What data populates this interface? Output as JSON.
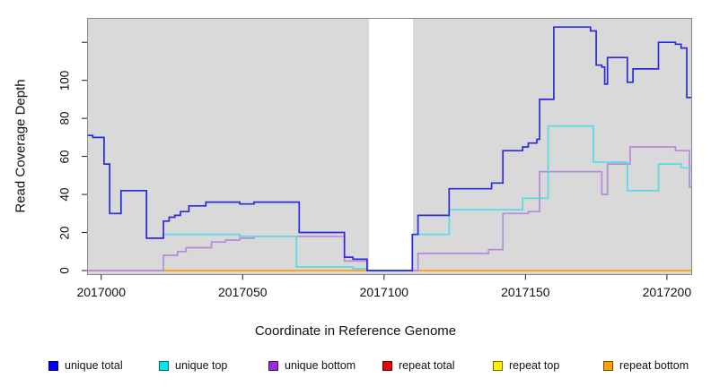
{
  "figure": {
    "background": "#FFFFFF",
    "plot_background": "#D9D9D9",
    "border_color": "#8A8A8A",
    "tick_color": "#1A1A1A"
  },
  "axes": {
    "x": {
      "label": "Coordinate in Reference Genome",
      "ticks": [
        2017000,
        2017050,
        2017100,
        2017150,
        2017200
      ],
      "tick_labels": [
        "2017000",
        "2017050",
        "2017100",
        "2017150",
        "2017200"
      ]
    },
    "y": {
      "label": "Read Coverage Depth",
      "ticks": [
        0,
        20,
        40,
        60,
        80,
        100,
        120
      ],
      "tick_labels": [
        "0",
        "20",
        "40",
        "60",
        "80",
        "100",
        ""
      ]
    }
  },
  "chart_data": {
    "type": "line",
    "step": true,
    "title": "",
    "xlabel": "Coordinate in Reference Genome",
    "ylabel": "Read Coverage Depth",
    "xlim": [
      2016995,
      2017208.6
    ],
    "ylim": [
      0,
      133
    ],
    "grid": false,
    "legend_position": "bottom",
    "masked_region": {
      "x0": 2017094.7,
      "x1": 2017110.2,
      "color": "#FFFFFF"
    },
    "zero_line_overlay": {
      "from": 2016995,
      "to": 2017022,
      "y": 0,
      "color": "#F291B2"
    },
    "series": [
      {
        "name": "unique total",
        "color": "#2B2BDC",
        "points": [
          [
            2016995,
            71
          ],
          [
            2016997,
            70
          ],
          [
            2017001,
            56
          ],
          [
            2017003,
            30
          ],
          [
            2017007,
            42
          ],
          [
            2017016,
            17
          ],
          [
            2017022,
            26
          ],
          [
            2017024,
            28
          ],
          [
            2017026,
            29
          ],
          [
            2017028,
            31
          ],
          [
            2017031,
            34
          ],
          [
            2017037,
            36
          ],
          [
            2017049,
            35
          ],
          [
            2017054,
            36
          ],
          [
            2017070,
            20
          ],
          [
            2017086,
            7
          ],
          [
            2017089,
            6
          ],
          [
            2017094,
            0
          ],
          [
            2017110,
            19
          ],
          [
            2017112,
            29
          ],
          [
            2017123,
            43
          ],
          [
            2017138,
            46
          ],
          [
            2017142,
            63
          ],
          [
            2017149,
            65
          ],
          [
            2017151,
            67
          ],
          [
            2017154,
            69
          ],
          [
            2017155,
            90
          ],
          [
            2017160,
            128
          ],
          [
            2017173,
            126
          ],
          [
            2017175,
            108
          ],
          [
            2017177,
            107
          ],
          [
            2017178,
            98
          ],
          [
            2017179,
            112
          ],
          [
            2017186,
            99
          ],
          [
            2017188,
            106
          ],
          [
            2017197,
            120
          ],
          [
            2017203,
            119
          ],
          [
            2017205,
            117
          ],
          [
            2017207,
            91
          ]
        ]
      },
      {
        "name": "unique top",
        "color": "#55DCE8",
        "points": [
          [
            2016995,
            71
          ],
          [
            2016997,
            70
          ],
          [
            2017001,
            56
          ],
          [
            2017003,
            30
          ],
          [
            2017007,
            42
          ],
          [
            2017016,
            17
          ],
          [
            2017022,
            19
          ],
          [
            2017049,
            18
          ],
          [
            2017069,
            2
          ],
          [
            2017089,
            1
          ],
          [
            2017094,
            0
          ],
          [
            2017110,
            19
          ],
          [
            2017123,
            32
          ],
          [
            2017149,
            38
          ],
          [
            2017158,
            76
          ],
          [
            2017174,
            57
          ],
          [
            2017186,
            42
          ],
          [
            2017197,
            56
          ],
          [
            2017205,
            54
          ]
        ]
      },
      {
        "name": "unique bottom",
        "color": "#B48BDC",
        "points": [
          [
            2016995,
            0
          ],
          [
            2017022,
            8
          ],
          [
            2017027,
            10
          ],
          [
            2017030,
            12
          ],
          [
            2017039,
            15
          ],
          [
            2017044,
            16
          ],
          [
            2017049,
            17
          ],
          [
            2017054,
            18
          ],
          [
            2017086,
            5
          ],
          [
            2017094,
            0
          ],
          [
            2017112,
            9
          ],
          [
            2017137,
            11
          ],
          [
            2017142,
            30
          ],
          [
            2017151,
            31
          ],
          [
            2017155,
            52
          ],
          [
            2017177,
            40
          ],
          [
            2017179,
            56
          ],
          [
            2017187,
            65
          ],
          [
            2017203,
            63
          ],
          [
            2017208,
            44
          ]
        ]
      },
      {
        "name": "repeat total",
        "color": "#E60000",
        "points": [
          [
            2016995,
            0
          ]
        ]
      },
      {
        "name": "repeat top",
        "color": "#FFEE00",
        "points": [
          [
            2016995,
            0
          ]
        ]
      },
      {
        "name": "repeat bottom",
        "color": "#FFA21F",
        "points": [
          [
            2016995,
            0
          ]
        ]
      }
    ]
  },
  "legend": {
    "items": [
      {
        "label": "unique total",
        "color": "#0000F0"
      },
      {
        "label": "unique top",
        "color": "#00E6E6"
      },
      {
        "label": "unique bottom",
        "color": "#9C2BDC"
      },
      {
        "label": "repeat total",
        "color": "#EE0000"
      },
      {
        "label": "repeat top",
        "color": "#FFF000"
      },
      {
        "label": "repeat bottom",
        "color": "#FF9F00"
      }
    ]
  }
}
